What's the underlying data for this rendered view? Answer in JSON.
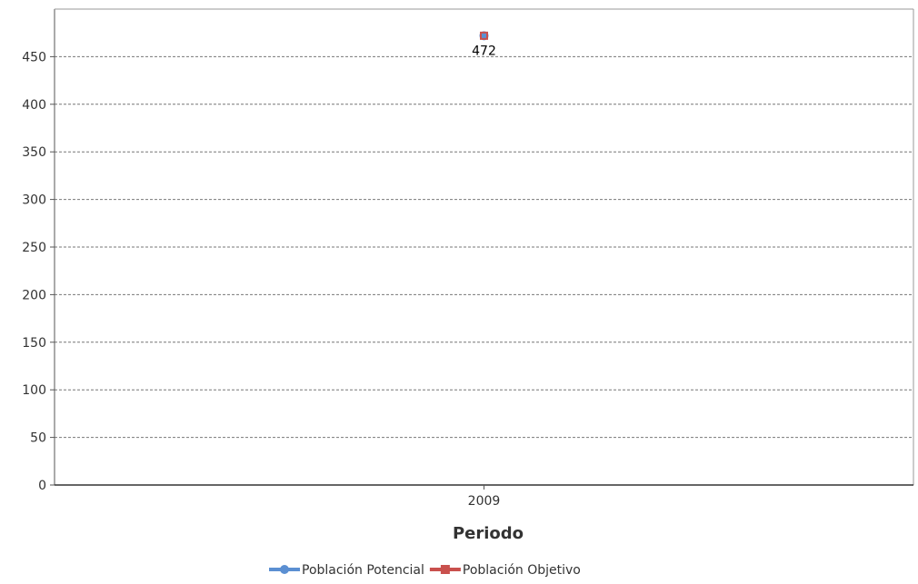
{
  "chart_data": {
    "type": "line",
    "categories": [
      "2009"
    ],
    "xlabel": "Periodo",
    "ylabel": "",
    "ylim": [
      0,
      500
    ],
    "y_ticks": [
      0,
      50,
      100,
      150,
      200,
      250,
      300,
      350,
      400,
      450
    ],
    "y_tick_labels": [
      "0",
      "50",
      "100",
      "150",
      "200",
      "250",
      "300",
      "350",
      "400",
      "450"
    ],
    "grid": true,
    "legend_position": "bottom",
    "series": [
      {
        "name": "Población Potencial",
        "values": [
          472
        ],
        "color": "#5b8fd2",
        "data_labels": [
          ""
        ]
      },
      {
        "name": "Población Objetivo",
        "values": [
          472
        ],
        "color": "#c9504d",
        "data_labels": [
          "472"
        ]
      }
    ]
  }
}
